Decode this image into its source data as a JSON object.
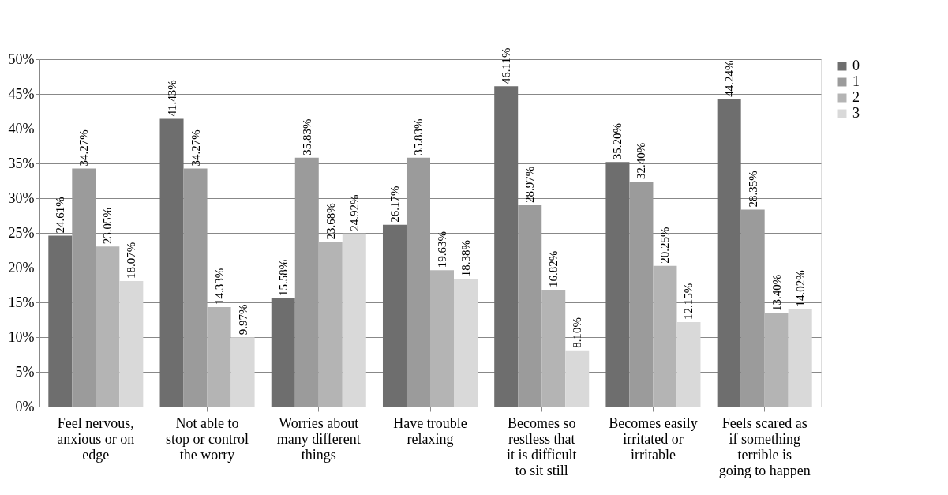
{
  "chart_data": {
    "type": "bar",
    "categories": [
      "Feel nervous, anxious or on edge",
      "Not able to stop or control the worry",
      "Worries about many different things",
      "Have trouble relaxing",
      "Becomes so restless that it is difficult to sit still",
      "Becomes easily irritated or irritable",
      "Feels scared as if something terrible is going to happen"
    ],
    "series": [
      {
        "name": "0",
        "color": "#6e6e6e",
        "values": [
          24.61,
          41.43,
          15.58,
          26.17,
          46.11,
          35.2,
          44.24
        ],
        "value_labels": [
          "24.61%",
          "41.43%",
          "15.58%",
          "26.17%",
          "46.11%",
          "35.20%",
          "44.24%"
        ]
      },
      {
        "name": "1",
        "color": "#9b9b9b",
        "values": [
          34.27,
          34.27,
          35.83,
          35.83,
          28.97,
          32.4,
          28.35
        ],
        "value_labels": [
          "34.27%",
          "34.27%",
          "35.83%",
          "35.83%",
          "28.97%",
          "32.40%",
          "28.35%"
        ]
      },
      {
        "name": "2",
        "color": "#b4b4b4",
        "values": [
          23.05,
          14.33,
          23.68,
          19.63,
          16.82,
          20.25,
          13.4
        ],
        "value_labels": [
          "23.05%",
          "14.33%",
          "23.68%",
          "19.63%",
          "16.82%",
          "20.25%",
          "13.40%"
        ]
      },
      {
        "name": "3",
        "color": "#d9d9d9",
        "values": [
          18.07,
          9.97,
          24.92,
          18.38,
          8.1,
          12.15,
          14.02
        ],
        "value_labels": [
          "18.07%",
          "9.97%",
          "24.92%",
          "18.38%",
          "8.10%",
          "12.15%",
          "14.02%"
        ]
      }
    ],
    "ylim": [
      0,
      50
    ],
    "yticks": [
      {
        "value": 0,
        "label": "0%"
      },
      {
        "value": 5,
        "label": "5%"
      },
      {
        "value": 10,
        "label": "10%"
      },
      {
        "value": 15,
        "label": "15%"
      },
      {
        "value": 20,
        "label": "20%"
      },
      {
        "value": 25,
        "label": "25%"
      },
      {
        "value": 30,
        "label": "30%"
      },
      {
        "value": 35,
        "label": "35%"
      },
      {
        "value": 40,
        "label": "40%"
      },
      {
        "value": 45,
        "label": "45%"
      },
      {
        "value": 50,
        "label": "50%"
      }
    ],
    "grid": "y",
    "legend": "right"
  }
}
